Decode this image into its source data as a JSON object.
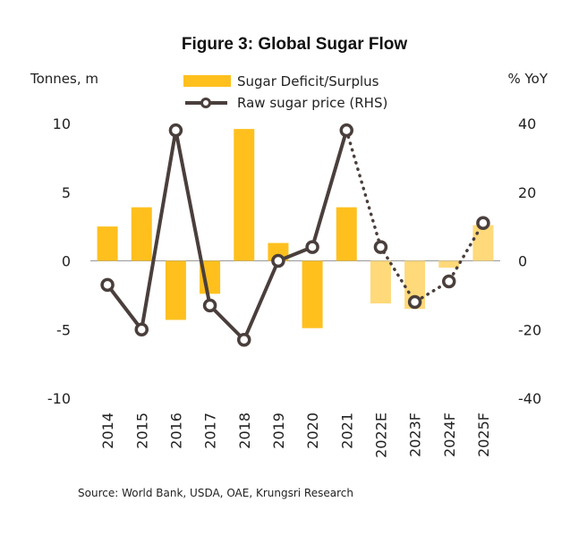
{
  "chart_data": {
    "type": "bar",
    "title": "Figure 3: Global Sugar Flow",
    "left_axis_unit": "Tonnes, m",
    "right_axis_unit": "% YoY",
    "source": "Source: World Bank, USDA, OAE, Krungsri Research",
    "categories": [
      "2014",
      "2015",
      "2016",
      "2017",
      "2018",
      "2019",
      "2020",
      "2021",
      "2022E",
      "2023F",
      "2024F",
      "2025F"
    ],
    "forecast_from_index": 8,
    "ylim_left": [
      -10,
      10
    ],
    "ylim_right": [
      -40,
      40
    ],
    "yticks_left": [
      "10",
      "5",
      "0",
      "-5",
      "-10"
    ],
    "yticks_right": [
      "40",
      "20",
      "0",
      "-20",
      "-40"
    ],
    "series": [
      {
        "name": "Sugar Deficit/Surplus",
        "type": "bar",
        "axis": "left",
        "color": "#FFC01E",
        "forecast_color": "#FFD97A",
        "values": [
          2.5,
          3.9,
          -4.3,
          -2.4,
          9.6,
          1.3,
          -4.9,
          3.9,
          -3.1,
          -3.5,
          -0.5,
          2.6
        ]
      },
      {
        "name": "Raw sugar price (RHS)",
        "type": "line",
        "axis": "right",
        "color": "#4A3F3C",
        "values": [
          -7,
          -20,
          38,
          -13,
          -23,
          0,
          4,
          38,
          4,
          -12,
          -6,
          11
        ]
      }
    ]
  }
}
